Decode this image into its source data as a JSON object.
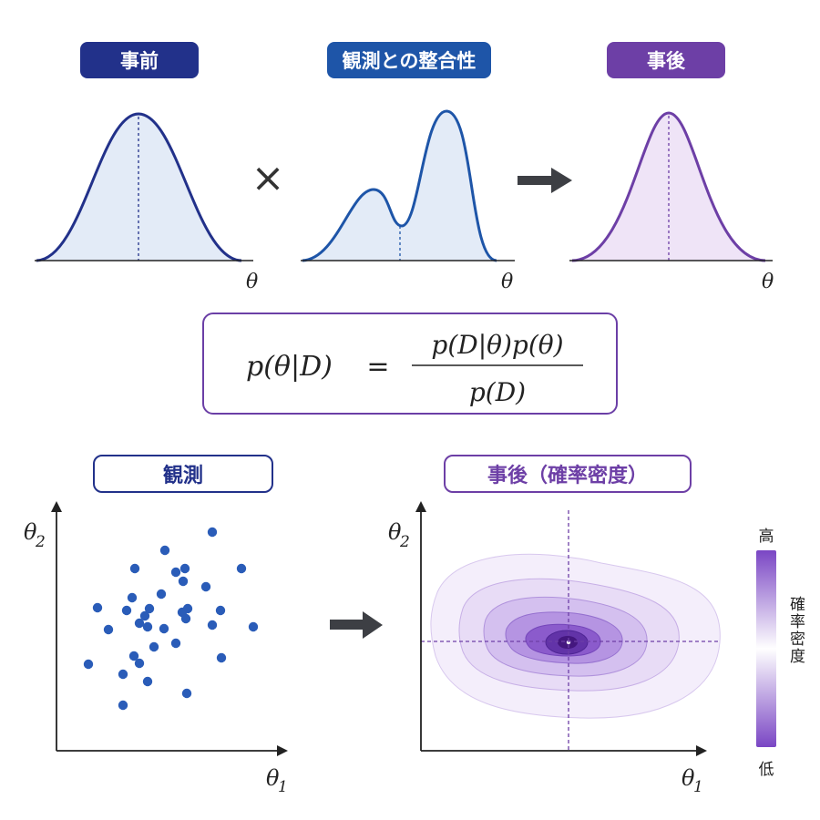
{
  "top_panels": {
    "prior_label": "事前",
    "likelihood_label": "観測との整合性",
    "posterior_label": "事後",
    "axis_symbol": "θ",
    "multiply_symbol": "×"
  },
  "formula": {
    "lhs": "p(θ|D)",
    "equals": "=",
    "numerator": "p(D|θ)p(θ)",
    "denominator": "p(D)"
  },
  "bottom_left": {
    "label": "観測",
    "x_axis_label": "θ",
    "x_axis_sub": "1",
    "y_axis_label": "θ",
    "y_axis_sub": "2",
    "points": [
      [
        233,
        584
      ],
      [
        181,
        604
      ],
      [
        265,
        624
      ],
      [
        148,
        624
      ],
      [
        193,
        628
      ],
      [
        203,
        624
      ],
      [
        201,
        638
      ],
      [
        226,
        644
      ],
      [
        177,
        652
      ],
      [
        145,
        656
      ],
      [
        107,
        667
      ],
      [
        164,
        668
      ],
      [
        139,
        670
      ],
      [
        206,
        668
      ],
      [
        200,
        672
      ],
      [
        242,
        670
      ],
      [
        159,
        676
      ],
      [
        204,
        679
      ],
      [
        153,
        684
      ],
      [
        180,
        690
      ],
      [
        119,
        691
      ],
      [
        233,
        686
      ],
      [
        278,
        688
      ],
      [
        162,
        688
      ],
      [
        193,
        706
      ],
      [
        169,
        710
      ],
      [
        147,
        720
      ],
      [
        97,
        729
      ],
      [
        243,
        722
      ],
      [
        153,
        728
      ],
      [
        135,
        740
      ],
      [
        162,
        748
      ],
      [
        205,
        761
      ],
      [
        135,
        774
      ]
    ],
    "point_color": "#2a5cb8"
  },
  "bottom_right": {
    "label": "事後（確率密度）",
    "x_axis_label": "θ",
    "x_axis_sub": "1",
    "y_axis_label": "θ",
    "y_axis_sub": "2",
    "colorbar_high": "高",
    "colorbar_low": "低",
    "colorbar_title": "確率密度"
  },
  "colors": {
    "prior": "#22318a",
    "likelihood": "#1e55a8",
    "posterior": "#6d3fa6",
    "arrow": "#3d3f44"
  }
}
